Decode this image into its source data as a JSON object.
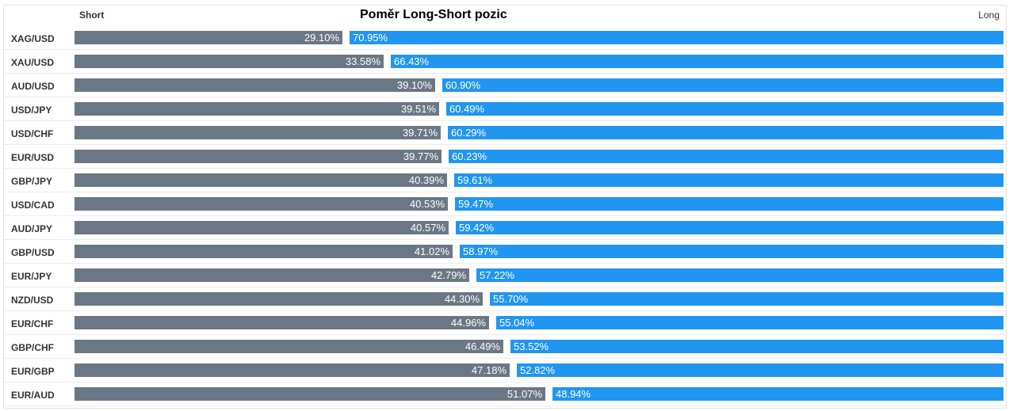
{
  "chart_data": {
    "type": "bar",
    "title": "Poměr Long-Short pozic",
    "short_label": "Short",
    "long_label": "Long",
    "colors": {
      "short": "#6b7784",
      "long": "#2196f0"
    },
    "categories": [
      "XAG/USD",
      "XAU/USD",
      "AUD/USD",
      "USD/JPY",
      "USD/CHF",
      "EUR/USD",
      "GBP/JPY",
      "USD/CAD",
      "AUD/JPY",
      "GBP/USD",
      "EUR/JPY",
      "NZD/USD",
      "EUR/CHF",
      "GBP/CHF",
      "EUR/GBP",
      "EUR/AUD"
    ],
    "short_display": [
      "29.10%",
      "33.58%",
      "39.10%",
      "39.51%",
      "39.71%",
      "39.77%",
      "40.39%",
      "40.53%",
      "40.57%",
      "41.02%",
      "42.79%",
      "44.30%",
      "44.96%",
      "46.49%",
      "47.18%",
      "51.07%"
    ],
    "long_display": [
      "70.95%",
      "66.43%",
      "60.90%",
      "60.49%",
      "60.29%",
      "60.23%",
      "59.61%",
      "59.47%",
      "59.42%",
      "58.97%",
      "57.22%",
      "55.70%",
      "55.04%",
      "53.52%",
      "52.82%",
      "48.94%"
    ],
    "series": [
      {
        "name": "Short",
        "values": [
          29.1,
          33.58,
          39.1,
          39.51,
          39.71,
          39.77,
          40.39,
          40.53,
          40.57,
          41.02,
          42.79,
          44.3,
          44.96,
          46.49,
          47.18,
          51.07
        ]
      },
      {
        "name": "Long",
        "values": [
          70.95,
          66.43,
          60.9,
          60.49,
          60.29,
          60.23,
          59.61,
          59.47,
          59.42,
          58.97,
          57.22,
          55.7,
          55.04,
          53.52,
          52.82,
          48.94
        ]
      }
    ]
  }
}
